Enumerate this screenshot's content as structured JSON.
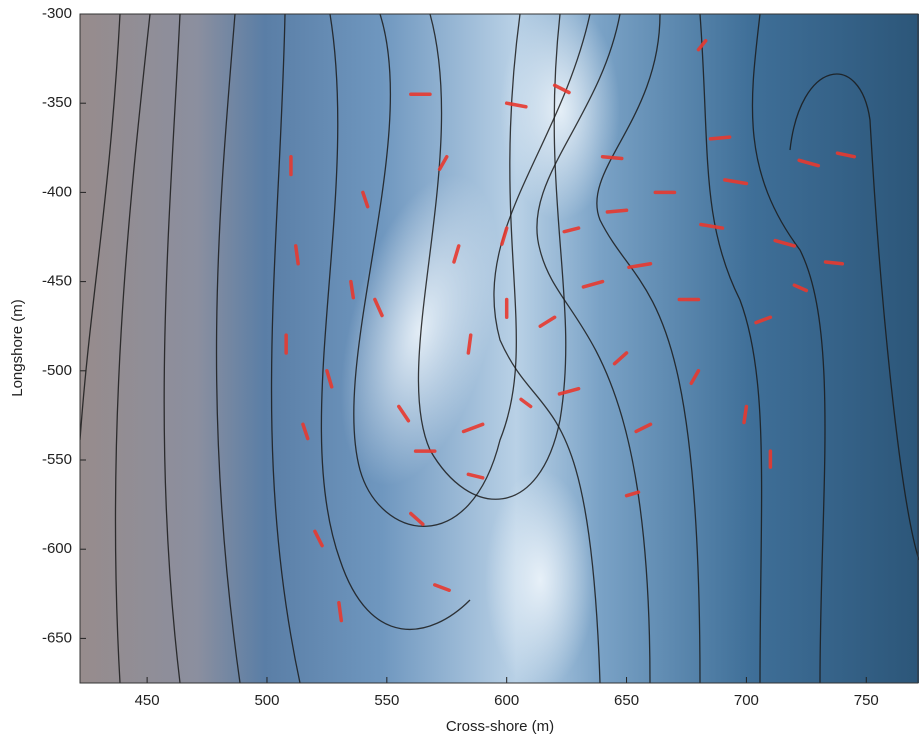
{
  "chart_data": {
    "type": "quiver",
    "xlabel": "Cross-shore (m)",
    "ylabel": "Longshore (m)",
    "xlim": [
      422,
      772
    ],
    "ylim": [
      -675,
      -300
    ],
    "xticks": [
      450,
      500,
      550,
      600,
      650,
      700,
      750
    ],
    "yticks": [
      -300,
      -350,
      -400,
      -450,
      -500,
      -550,
      -600,
      -650
    ],
    "color": "#e8392f",
    "x": [
      510,
      512,
      508,
      515,
      520,
      530,
      540,
      545,
      555,
      560,
      570,
      575,
      580,
      585,
      590,
      590,
      570,
      600,
      620,
      560,
      600,
      640,
      630,
      650,
      670,
      700,
      730,
      745,
      690,
      720,
      740,
      660,
      640,
      620,
      680,
      710,
      650,
      680,
      700,
      710,
      660,
      630,
      685,
      725,
      610,
      650,
      535,
      525,
      680,
      600
    ],
    "y": [
      -380,
      -430,
      -480,
      -530,
      -590,
      -630,
      -400,
      -460,
      -520,
      -580,
      -620,
      -380,
      -430,
      -480,
      -530,
      -560,
      -545,
      -460,
      -340,
      -345,
      -350,
      -380,
      -420,
      -410,
      -400,
      -395,
      -385,
      -380,
      -420,
      -430,
      -440,
      -440,
      -450,
      -470,
      -460,
      -470,
      -490,
      -500,
      -520,
      -545,
      -530,
      -510,
      -370,
      -455,
      -520,
      -570,
      -450,
      -500,
      -320,
      -420
    ],
    "u": [
      0,
      1,
      0,
      2,
      3,
      1,
      2,
      3,
      4,
      5,
      6,
      -3,
      -2,
      -1,
      -8,
      -6,
      -8,
      0,
      6,
      8,
      8,
      8,
      -6,
      -8,
      -8,
      -9,
      -8,
      -7,
      -9,
      -8,
      -7,
      -9,
      -8,
      -6,
      -8,
      -6,
      -5,
      -3,
      -1,
      0,
      -6,
      -8,
      8,
      -5,
      -4,
      5,
      1,
      2,
      3,
      -2
    ],
    "v": [
      -10,
      -10,
      -10,
      -8,
      -8,
      -10,
      -8,
      -9,
      -8,
      -6,
      -3,
      -7,
      -9,
      -10,
      -4,
      2,
      0,
      -10,
      -4,
      0,
      -2,
      -1,
      -2,
      -1,
      0,
      2,
      3,
      2,
      2,
      3,
      1,
      -2,
      -3,
      -5,
      0,
      -3,
      -6,
      -7,
      -9,
      -9,
      -4,
      -3,
      1,
      3,
      4,
      2,
      -9,
      -9,
      5,
      -9
    ]
  }
}
